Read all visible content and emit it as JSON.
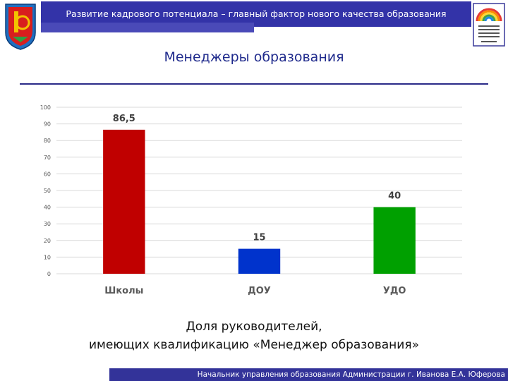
{
  "header": {
    "title": "Развитие кадрового потенциала – главный фактор нового качества образования"
  },
  "slide": {
    "title": "Менеджеры образования",
    "caption_line1": "Доля руководителей,",
    "caption_line2": "имеющих квалификацию «Менеджер образования»"
  },
  "footer": {
    "text": "Начальник управления образования Администрации  г. Иванова      Е.А. Юферова"
  },
  "colors": {
    "header_bar": "#3333a8",
    "title": "#1f2a8c",
    "footer_bar": "#333399"
  },
  "icons": {
    "left_logo": "city-coat-of-arms-icon",
    "right_logo": "education-department-rainbow-logo-icon"
  },
  "chart_data": {
    "type": "bar",
    "categories": [
      "Школы",
      "ДОУ",
      "УДО"
    ],
    "values": [
      86.5,
      15,
      40
    ],
    "data_labels": [
      "86,5",
      "15",
      "40"
    ],
    "colors": [
      "#c00000",
      "#0033cc",
      "#00a000"
    ],
    "title": "",
    "xlabel": "",
    "ylabel": "",
    "ylim": [
      0,
      100
    ],
    "yticks": [
      0,
      10,
      20,
      30,
      40,
      50,
      60,
      70,
      80,
      90,
      100
    ],
    "grid": true,
    "legend": "none"
  }
}
